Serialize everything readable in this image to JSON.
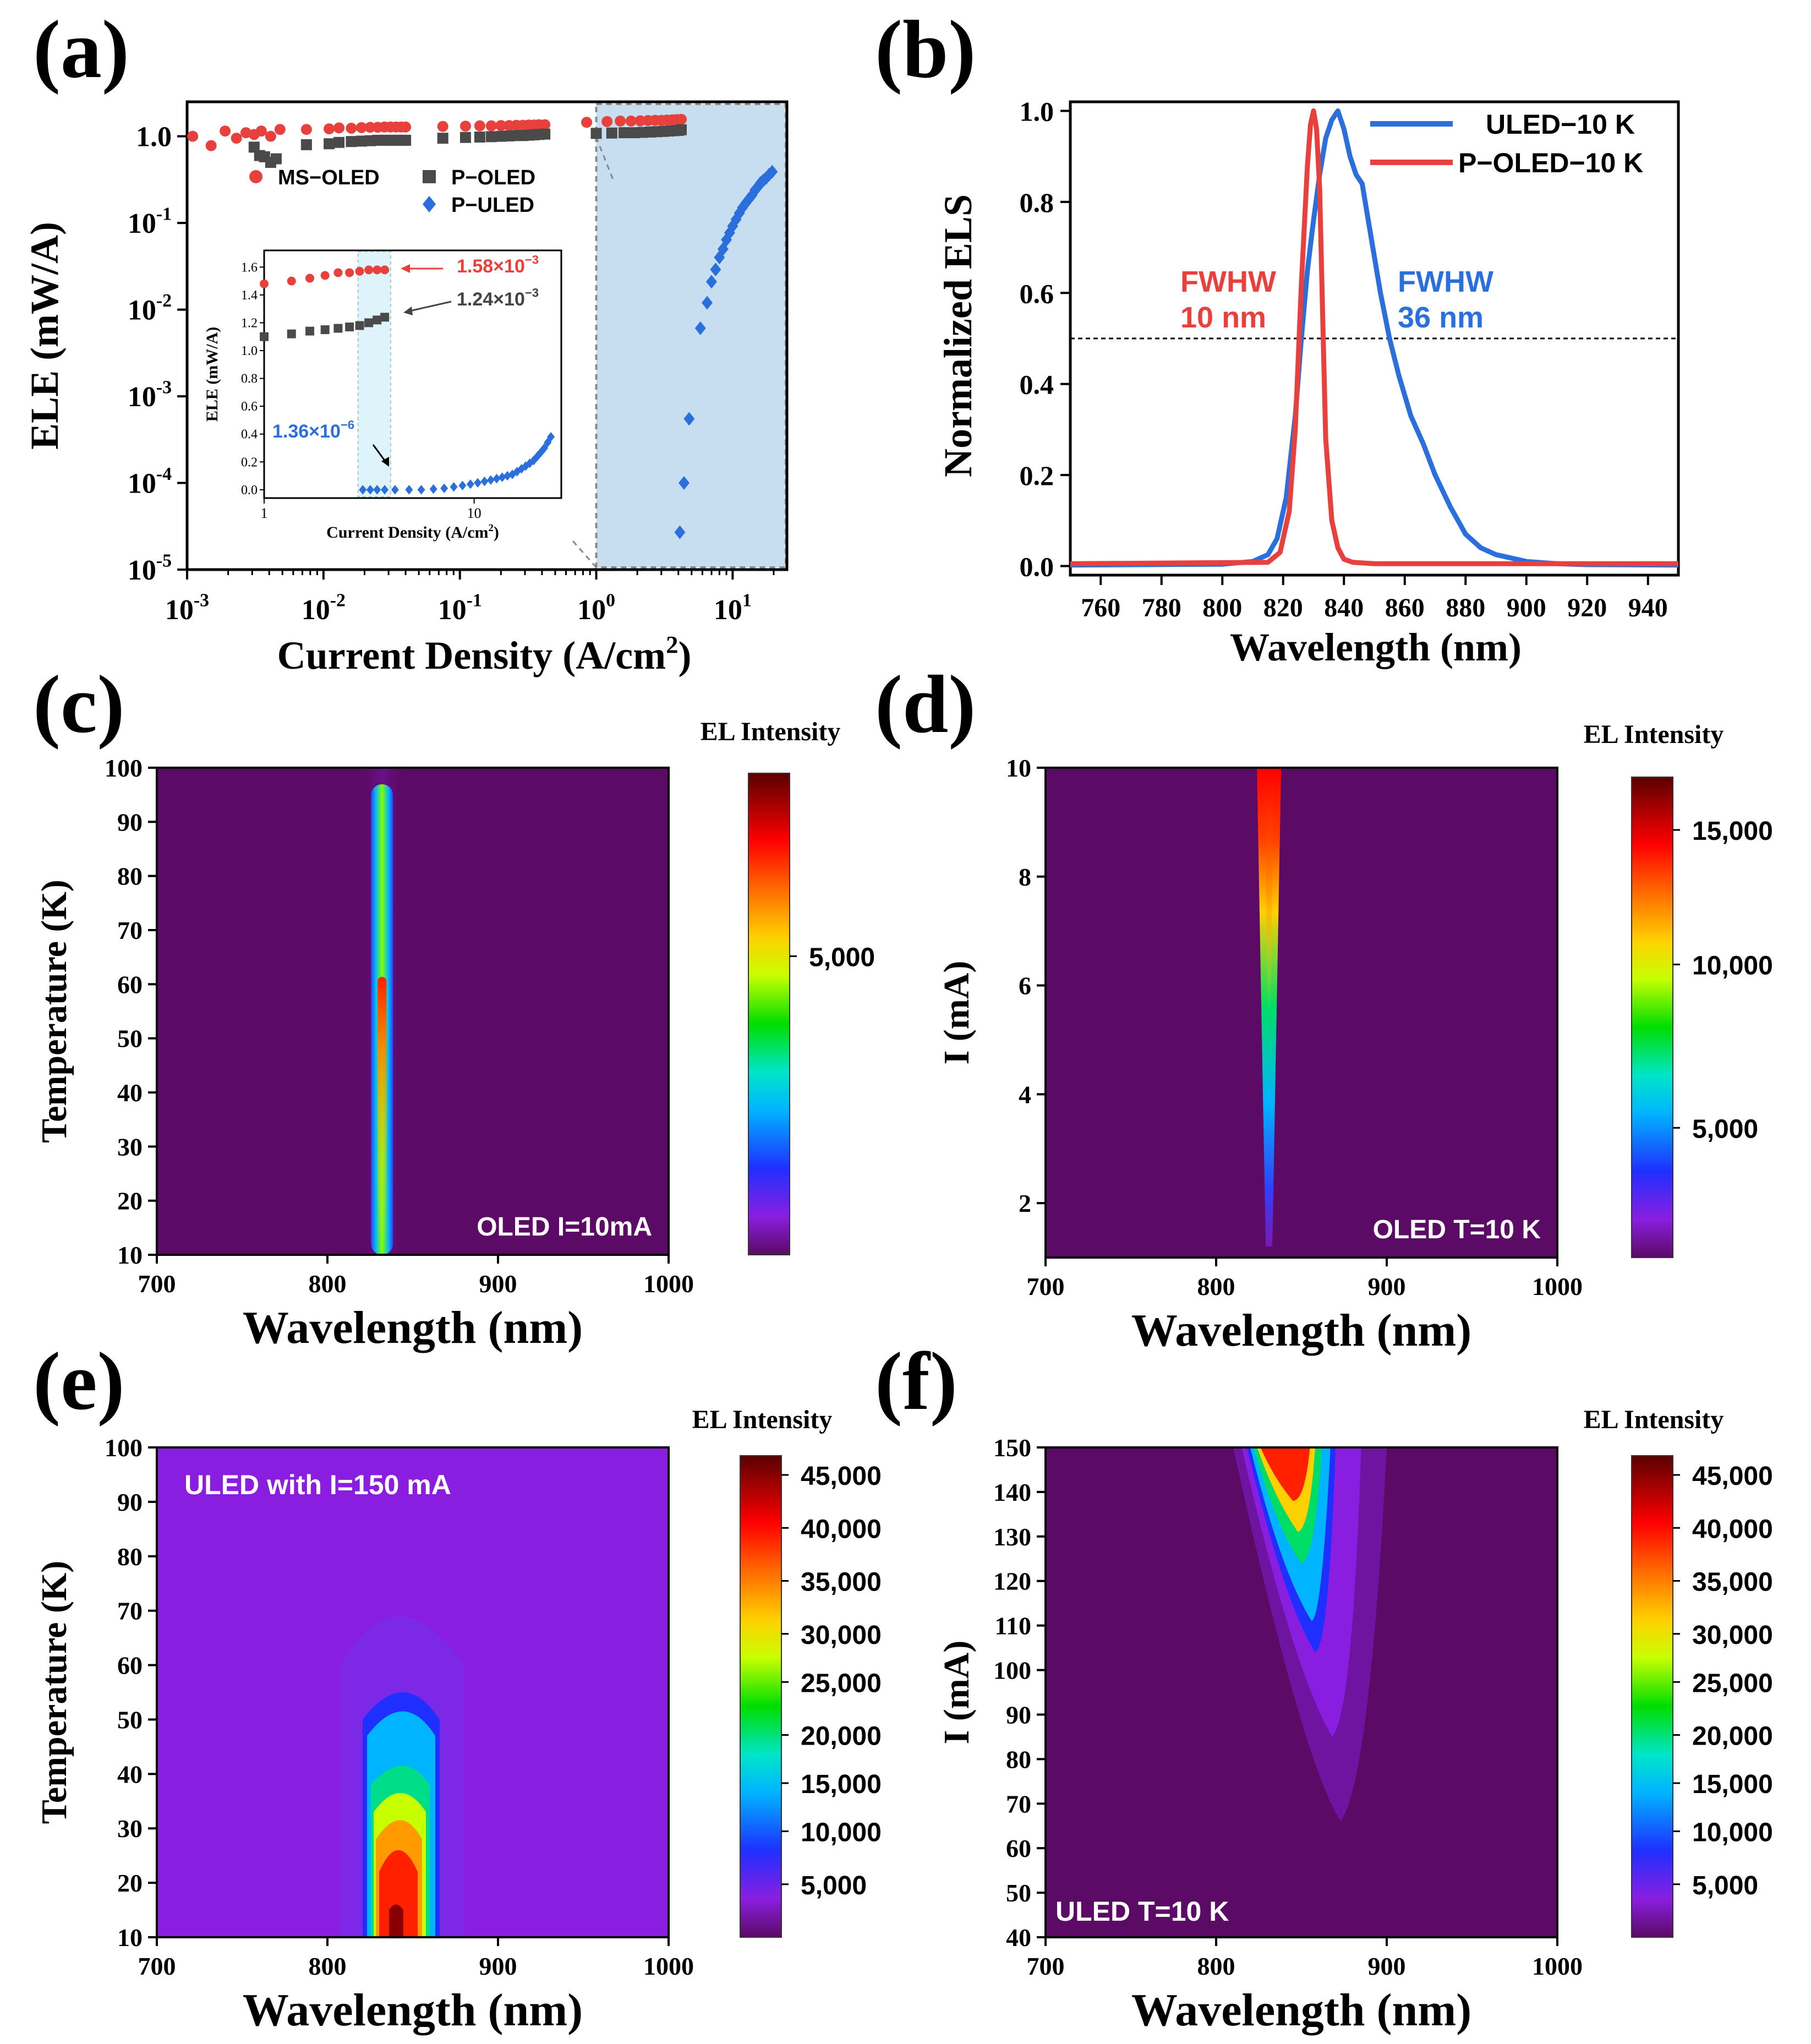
{
  "colors": {
    "ms_oled": "#e8403c",
    "p_oled": "#4a4a4a",
    "p_uled": "#2a6fdb",
    "uled_line": "#2a6fdb",
    "poled_line": "#e8403c",
    "highlight": "#c7def0",
    "map_bg_dark": "#5b0a66",
    "map_bg_violet": "#8a1ee0"
  },
  "panel_labels": [
    "(a)",
    "(b)",
    "(c)",
    "(d)",
    "(e)",
    "(f)"
  ],
  "chart_data": [
    {
      "id": "a",
      "type": "scatter",
      "xscale": "log",
      "yscale": "log",
      "xlabel": "Current Density (A/cm",
      "xlabel_sup": "2",
      "xlabel_tail": ")",
      "ylabel": "ELE (mW/A)",
      "xlim": [
        0.001,
        25
      ],
      "ylim": [
        1e-05,
        2.5
      ],
      "xticks": [
        {
          "base": "10",
          "exp": "-3",
          "v": 0.001
        },
        {
          "base": "10",
          "exp": "-2",
          "v": 0.01
        },
        {
          "base": "10",
          "exp": "-1",
          "v": 0.1
        },
        {
          "base": "10",
          "exp": "0",
          "v": 1
        },
        {
          "base": "10",
          "exp": "1",
          "v": 10
        }
      ],
      "yticks": [
        {
          "base": "10",
          "exp": "-5",
          "v": 1e-05
        },
        {
          "base": "10",
          "exp": "-4",
          "v": 0.0001
        },
        {
          "base": "10",
          "exp": "-3",
          "v": 0.001
        },
        {
          "base": "10",
          "exp": "-2",
          "v": 0.01
        },
        {
          "base": "10",
          "exp": "-1",
          "v": 0.1
        },
        {
          "base": "1.0",
          "exp": "",
          "v": 1
        }
      ],
      "series": [
        {
          "name": "MS−OLED",
          "marker": "circle",
          "x": [
            0.0011,
            0.0015,
            0.0019,
            0.0023,
            0.0027,
            0.0031,
            0.0035,
            0.0041,
            0.0048,
            0.0075,
            0.011,
            0.013,
            0.016,
            0.019,
            0.022,
            0.025,
            0.028,
            0.031,
            0.034,
            0.037,
            0.04,
            0.075,
            0.11,
            0.14,
            0.17,
            0.2,
            0.23,
            0.26,
            0.29,
            0.32,
            0.35,
            0.38,
            0.42,
            0.85,
            1.2,
            1.5,
            1.8,
            2.1,
            2.4,
            2.7,
            3.0,
            3.3,
            3.6,
            3.9,
            4.2
          ],
          "y": [
            1.0,
            0.78,
            1.15,
            0.95,
            1.1,
            1.05,
            1.15,
            1.0,
            1.2,
            1.2,
            1.22,
            1.25,
            1.24,
            1.26,
            1.27,
            1.27,
            1.28,
            1.28,
            1.28,
            1.28,
            1.28,
            1.3,
            1.31,
            1.32,
            1.32,
            1.33,
            1.33,
            1.34,
            1.34,
            1.35,
            1.35,
            1.36,
            1.36,
            1.45,
            1.48,
            1.5,
            1.5,
            1.51,
            1.52,
            1.53,
            1.53,
            1.54,
            1.55,
            1.56,
            1.57
          ]
        },
        {
          "name": "P−OLED",
          "marker": "square",
          "x": [
            0.0031,
            0.0034,
            0.0037,
            0.0041,
            0.0045,
            0.0075,
            0.011,
            0.013,
            0.016,
            0.019,
            0.022,
            0.025,
            0.028,
            0.031,
            0.034,
            0.037,
            0.04,
            0.075,
            0.11,
            0.14,
            0.17,
            0.2,
            0.23,
            0.26,
            0.29,
            0.32,
            0.35,
            0.38,
            0.42,
            1.0,
            1.3,
            1.6,
            1.9,
            2.2,
            2.5,
            2.8,
            3.1,
            3.4,
            3.7,
            4.0,
            4.2
          ],
          "y": [
            0.75,
            0.6,
            0.58,
            0.5,
            0.55,
            0.8,
            0.82,
            0.85,
            0.87,
            0.88,
            0.89,
            0.9,
            0.9,
            0.9,
            0.9,
            0.9,
            0.9,
            0.95,
            0.97,
            0.98,
            0.99,
            1.0,
            1.01,
            1.02,
            1.02,
            1.03,
            1.04,
            1.05,
            1.06,
            1.08,
            1.09,
            1.1,
            1.1,
            1.11,
            1.12,
            1.13,
            1.14,
            1.15,
            1.16,
            1.17,
            1.19
          ]
        },
        {
          "name": "P−ULED",
          "marker": "diamond",
          "x": [
            4.1,
            4.4,
            4.8,
            5.8,
            6.5,
            7.0,
            7.5,
            8.0,
            8.5,
            9.0,
            9.5,
            10.0,
            10.6,
            11.2,
            11.8,
            12.5,
            13.2,
            13.9,
            14.6,
            15.3,
            16.0,
            16.8,
            17.6,
            18.5,
            19.5
          ],
          "y": [
            2.7e-05,
            0.0001,
            0.00055,
            0.0061,
            0.012,
            0.021,
            0.029,
            0.04,
            0.05,
            0.064,
            0.077,
            0.092,
            0.11,
            0.13,
            0.15,
            0.17,
            0.19,
            0.21,
            0.24,
            0.26,
            0.29,
            0.31,
            0.33,
            0.36,
            0.39
          ]
        }
      ],
      "inset": {
        "xlabel": "Current Density (A/cm",
        "xlabel_sup": "2",
        "xlabel_tail": ")",
        "ylabel": "ELE (mW/A)",
        "xlim": [
          1,
          26
        ],
        "ylim": [
          -0.06,
          1.72
        ],
        "xticks": [
          "1",
          "10"
        ],
        "yticks": [
          "0.0",
          "0.2",
          "0.4",
          "0.6",
          "0.8",
          "1.0",
          "1.2",
          "1.4",
          "1.6"
        ],
        "highlight_range": [
          2.8,
          4.0
        ],
        "ms_x": [
          1.0,
          1.35,
          1.65,
          1.95,
          2.25,
          2.55,
          2.85,
          3.15,
          3.45,
          3.75
        ],
        "ms_y": [
          1.48,
          1.5,
          1.52,
          1.54,
          1.56,
          1.56,
          1.57,
          1.58,
          1.58,
          1.58
        ],
        "po_x": [
          1.0,
          1.35,
          1.65,
          1.95,
          2.25,
          2.55,
          2.85,
          3.15,
          3.45,
          3.75
        ],
        "po_y": [
          1.1,
          1.12,
          1.14,
          1.15,
          1.16,
          1.17,
          1.18,
          1.2,
          1.22,
          1.24
        ],
        "pu_x": [
          2.95,
          3.2,
          3.45,
          3.75,
          4.2,
          4.9,
          5.6,
          6.4,
          7.2,
          8.0,
          8.8,
          9.6,
          10.4,
          11.2,
          12.0,
          12.8,
          13.6,
          14.4,
          15.2,
          16.0,
          16.8,
          17.6,
          18.4,
          19.2,
          20.0,
          20.8,
          21.6,
          22.4,
          23.2
        ],
        "pu_y": [
          0.0,
          0.0,
          0.0,
          0.0,
          0.0,
          0.0,
          0.0,
          0.005,
          0.01,
          0.02,
          0.03,
          0.04,
          0.05,
          0.06,
          0.07,
          0.08,
          0.09,
          0.1,
          0.11,
          0.13,
          0.15,
          0.17,
          0.19,
          0.21,
          0.24,
          0.27,
          0.3,
          0.34,
          0.38
        ],
        "annot_ms": "1.58×10",
        "annot_ms_exp": "−3",
        "annot_po": "1.24×10",
        "annot_po_exp": "−3",
        "annot_pu": "1.36×10",
        "annot_pu_exp": "−6"
      }
    },
    {
      "id": "b",
      "type": "line",
      "xlabel": "Wavelength (nm)",
      "ylabel": "Normalized ELS",
      "xlim": [
        750,
        950
      ],
      "ylim": [
        -0.02,
        1.02
      ],
      "xticks": [
        "760",
        "780",
        "800",
        "820",
        "840",
        "860",
        "880",
        "900",
        "920",
        "940"
      ],
      "yticks": [
        "0.0",
        "0.2",
        "0.4",
        "0.6",
        "0.8",
        "1.0"
      ],
      "hline": 0.5,
      "series": [
        {
          "name": "ULED−10 K",
          "x": [
            750,
            800,
            810,
            815,
            818,
            821,
            824,
            826,
            828,
            830,
            832,
            834,
            836,
            838,
            840,
            842,
            844,
            846,
            848,
            850,
            852,
            855,
            858,
            862,
            866,
            870,
            875,
            880,
            885,
            890,
            900,
            910,
            920,
            950
          ],
          "y": [
            0.002,
            0.004,
            0.01,
            0.025,
            0.06,
            0.15,
            0.33,
            0.5,
            0.65,
            0.76,
            0.86,
            0.94,
            0.98,
            1.0,
            0.96,
            0.9,
            0.86,
            0.84,
            0.76,
            0.68,
            0.6,
            0.5,
            0.42,
            0.33,
            0.27,
            0.2,
            0.13,
            0.07,
            0.04,
            0.025,
            0.01,
            0.005,
            0.003,
            0.002
          ]
        },
        {
          "name": "P−OLED−10 K",
          "x": [
            750,
            815,
            819,
            822,
            824,
            826,
            828,
            829,
            830,
            831,
            832,
            833,
            834,
            836,
            838,
            840,
            843,
            850,
            950
          ],
          "y": [
            0.005,
            0.008,
            0.03,
            0.12,
            0.3,
            0.62,
            0.88,
            0.97,
            1.0,
            0.96,
            0.83,
            0.55,
            0.28,
            0.1,
            0.04,
            0.015,
            0.008,
            0.005,
            0.005
          ]
        }
      ],
      "annotations": [
        {
          "text1": "FWHW",
          "text2": "10 nm",
          "color": "#e8403c"
        },
        {
          "text1": "FWHW",
          "text2": "36 nm",
          "color": "#2a6fdb"
        }
      ]
    },
    {
      "id": "c",
      "type": "heatmap",
      "xlabel": "Wavelength (nm)",
      "ylabel": "Temperature (K)",
      "xlim": [
        700,
        1000
      ],
      "ylim": [
        10,
        100
      ],
      "xticks": [
        "700",
        "800",
        "900",
        "1000"
      ],
      "yticks": [
        "10",
        "20",
        "30",
        "40",
        "50",
        "60",
        "70",
        "80",
        "90",
        "100"
      ],
      "colorbar_title": "EL Intensity",
      "colorbar_ticks": [
        "5,000"
      ],
      "label": "OLED  I=10mA",
      "peak_nm": 832,
      "width_nm": 8
    },
    {
      "id": "d",
      "type": "heatmap",
      "xlabel": "Wavelength (nm)",
      "ylabel": "I (mA)",
      "xlim": [
        700,
        1000
      ],
      "ylim": [
        1,
        10
      ],
      "xticks": [
        "700",
        "800",
        "900",
        "1000"
      ],
      "yticks": [
        "2",
        "4",
        "6",
        "8",
        "10"
      ],
      "colorbar_title": "EL Intensity",
      "colorbar_ticks": [
        "5,000",
        "10,000",
        "15,000"
      ],
      "label": "OLED  T=10 K",
      "peak_nm": 831,
      "width_nm": 7
    },
    {
      "id": "e",
      "type": "heatmap",
      "xlabel": "Wavelength (nm)",
      "ylabel": "Temperature (K)",
      "xlim": [
        700,
        1000
      ],
      "ylim": [
        10,
        100
      ],
      "xticks": [
        "700",
        "800",
        "900",
        "1000"
      ],
      "yticks": [
        "10",
        "20",
        "30",
        "40",
        "50",
        "60",
        "70",
        "80",
        "90",
        "100"
      ],
      "colorbar_title": "EL Intensity",
      "colorbar_ticks": [
        "5,000",
        "10,000",
        "15,000",
        "20,000",
        "25,000",
        "30,000",
        "35,000",
        "40,000",
        "45,000"
      ],
      "label": "ULED  with I=150 mA",
      "peak_nm": 840,
      "width_nm": 22
    },
    {
      "id": "f",
      "type": "heatmap",
      "xlabel": "Wavelength (nm)",
      "ylabel": "I (mA)",
      "xlim": [
        700,
        1000
      ],
      "ylim": [
        40,
        150
      ],
      "xticks": [
        "700",
        "800",
        "900",
        "1000"
      ],
      "yticks": [
        "40",
        "50",
        "60",
        "70",
        "80",
        "90",
        "100",
        "110",
        "120",
        "130",
        "140",
        "150"
      ],
      "colorbar_title": "EL Intensity",
      "colorbar_ticks": [
        "5,000",
        "10,000",
        "15,000",
        "20,000",
        "25,000",
        "30,000",
        "35,000",
        "40,000",
        "45,000"
      ],
      "label": "ULED  T=10 K",
      "peak_nm": 845,
      "width_nm": 25
    }
  ]
}
